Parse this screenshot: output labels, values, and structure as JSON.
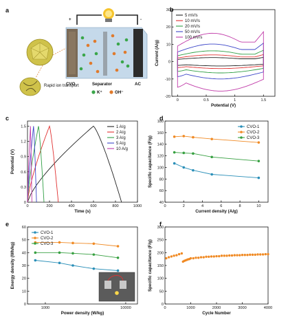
{
  "panels": {
    "a": "a",
    "b": "b",
    "c": "c",
    "d": "d",
    "e": "e",
    "f": "f"
  },
  "schematic": {
    "electrode_left": "CVO",
    "separator": "Separator",
    "electrode_right": "AC",
    "plus": "+",
    "minus": "-",
    "legend_k": "K⁺",
    "legend_oh": "OH⁻",
    "transport": "Rapid ion transport",
    "colors": {
      "cvo": "#7d6a55",
      "ac": "#2b2b2b",
      "electrolyte": "#bcd4e8",
      "particle": "#c9c048",
      "k_ion": "#3aa64a",
      "oh_ion": "#e07a2c"
    }
  },
  "chart_data": [
    {
      "id": "b",
      "type": "line",
      "subtitle": "CV curves",
      "xlabel": "Potential (V)",
      "ylabel": "Current (A/g)",
      "xlim": [
        -0.1,
        1.7
      ],
      "ylim": [
        -20,
        30
      ],
      "xticks": [
        0.0,
        0.5,
        1.0,
        1.5
      ],
      "yticks": [
        -20,
        -10,
        0,
        10,
        20,
        30
      ],
      "legend_position": "top-left",
      "series": [
        {
          "name": "5 mV/s",
          "color": "#222222",
          "peak": 3.0,
          "trough": -2.5
        },
        {
          "name": "10 mV/s",
          "color": "#e03030",
          "peak": 5.0,
          "trough": -4.0
        },
        {
          "name": "20 mV/s",
          "color": "#2f9e44",
          "peak": 8.0,
          "trough": -6.5
        },
        {
          "name": "50 mV/s",
          "color": "#3b45c8",
          "peak": 13.0,
          "trough": -10.0
        },
        {
          "name": "100 mV/s",
          "color": "#c03aa8",
          "peak": 21.0,
          "trough": -17.0
        }
      ]
    },
    {
      "id": "c",
      "type": "line",
      "subtitle": "GCD curves",
      "xlabel": "Time (s)",
      "ylabel": "Potential (V)",
      "xlim": [
        0,
        1000
      ],
      "ylim": [
        0,
        1.6
      ],
      "xticks": [
        0,
        200,
        400,
        600,
        800,
        1000
      ],
      "yticks": [
        0.0,
        0.3,
        0.6,
        0.9,
        1.2,
        1.5
      ],
      "legend_position": "top-right",
      "series": [
        {
          "name": "1 A/g",
          "color": "#222222",
          "t_charge": 600,
          "t_end": 855
        },
        {
          "name": "2 A/g",
          "color": "#e03030",
          "t_charge": 200,
          "t_end": 280
        },
        {
          "name": "3 A/g",
          "color": "#2f9e44",
          "t_charge": 100,
          "t_end": 150
        },
        {
          "name": "5 A/g",
          "color": "#3b45c8",
          "t_charge": 55,
          "t_end": 82
        },
        {
          "name": "10 A/g",
          "color": "#c03aa8",
          "t_charge": 27,
          "t_end": 40
        }
      ]
    },
    {
      "id": "d",
      "type": "line",
      "subtitle": "Rate capability",
      "xlabel": "Current density (A/g)",
      "ylabel": "Specific capacitance (F/g)",
      "xlim": [
        0,
        11
      ],
      "ylim": [
        40,
        180
      ],
      "xticks": [
        0,
        2,
        4,
        6,
        8,
        10
      ],
      "yticks": [
        40,
        60,
        80,
        100,
        120,
        140,
        160,
        180
      ],
      "legend_position": "top-right",
      "x": [
        1,
        2,
        3,
        5,
        10
      ],
      "series": [
        {
          "name": "CVO-1",
          "color": "#2a8fb8",
          "values": [
            107,
            100,
            95,
            88,
            82
          ]
        },
        {
          "name": "CVO-2",
          "color": "#f08a24",
          "values": [
            153,
            154,
            152,
            149,
            143
          ]
        },
        {
          "name": "CVO-3",
          "color": "#37a041",
          "values": [
            126,
            125,
            124,
            118,
            111
          ]
        }
      ]
    },
    {
      "id": "e",
      "type": "line",
      "subtitle": "Ragone plot",
      "xlabel": "Power density (W/kg)",
      "ylabel": "Energy density (Wh/kg)",
      "xscale": "log",
      "xlim": [
        600,
        14000
      ],
      "ylim": [
        0,
        60
      ],
      "xticks": [
        1000,
        10000
      ],
      "xtick_labels": [
        "1000",
        "10000"
      ],
      "yticks": [
        0,
        10,
        20,
        30,
        40,
        50,
        60
      ],
      "legend_position": "top-left",
      "inset": "photo of a supercapacitor device powering an LED",
      "x": [
        750,
        1500,
        2200,
        4000,
        8000
      ],
      "series": [
        {
          "name": "CVO-1",
          "color": "#2a8fb8",
          "values": [
            34,
            32,
            30,
            27.5,
            26
          ]
        },
        {
          "name": "CVO-2",
          "color": "#f08a24",
          "values": [
            48,
            48,
            47.5,
            47,
            45
          ]
        },
        {
          "name": "CVO-3",
          "color": "#37a041",
          "values": [
            40,
            40,
            39.5,
            38.5,
            36
          ]
        }
      ]
    },
    {
      "id": "f",
      "type": "scatter",
      "subtitle": "Cycling stability",
      "xlabel": "Cycle Number",
      "ylabel": "Specific capacitance (F/g)",
      "xlim": [
        0,
        4000
      ],
      "ylim": [
        0,
        300
      ],
      "xticks": [
        0,
        1000,
        2000,
        3000,
        4000
      ],
      "yticks": [
        0,
        50,
        100,
        150,
        200,
        250,
        300
      ],
      "series": [
        {
          "name": "CVO-2",
          "color": "#f08a24",
          "x": [
            50,
            150,
            250,
            350,
            450,
            550,
            650,
            700,
            750,
            800,
            850,
            900,
            950,
            1000,
            1100,
            1200,
            1300,
            1400,
            1500,
            1600,
            1700,
            1800,
            1900,
            2000,
            2100,
            2200,
            2300,
            2400,
            2500,
            2600,
            2700,
            2800,
            2900,
            3000,
            3100,
            3200,
            3300,
            3400,
            3500,
            3600,
            3700,
            3800,
            3900,
            4000
          ],
          "values": [
            178,
            182,
            185,
            188,
            190,
            194,
            197,
            165,
            168,
            170,
            172,
            174,
            175,
            178,
            178,
            180,
            180,
            182,
            182,
            184,
            184,
            185,
            185,
            186,
            186,
            188,
            188,
            188,
            189,
            189,
            190,
            190,
            190,
            191,
            191,
            191,
            192,
            192,
            192,
            193,
            193,
            193,
            194,
            194
          ]
        }
      ]
    }
  ]
}
